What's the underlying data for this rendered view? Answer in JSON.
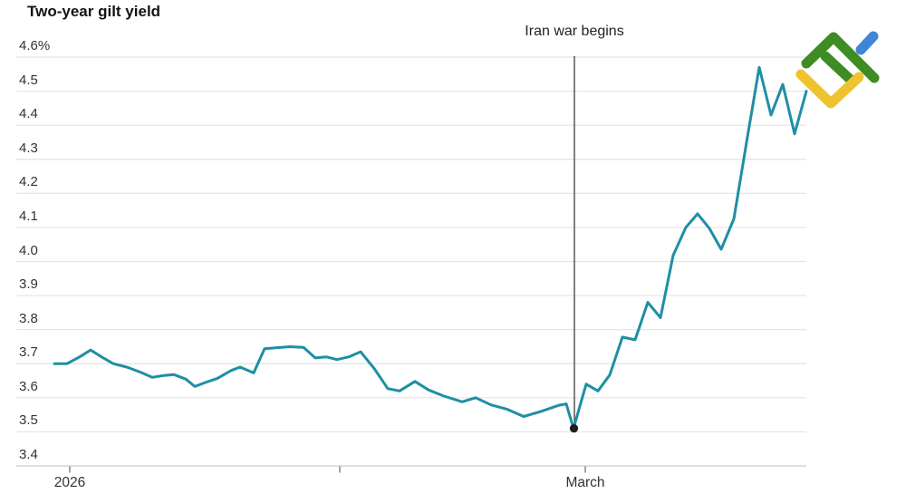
{
  "title": "Two-year gilt yield",
  "annotation": "Iran war begins",
  "colors": {
    "series": "#1E8FA4",
    "grid": "#e3e3e3",
    "axis": "#c9c9c9",
    "tick": "#666666",
    "event_line": "#3c3c3c",
    "event_dot": "#1d1d1d",
    "label_text": "#333333",
    "title_text": "#141414"
  },
  "chart_data": {
    "type": "line",
    "title": "Two-year gilt yield",
    "xlabel": "",
    "ylabel": "",
    "ylim": [
      3.4,
      4.6
    ],
    "grid": true,
    "legend": "none",
    "y_ticks": [
      {
        "value": 4.6,
        "label": "4.6%"
      },
      {
        "value": 4.5,
        "label": "4.5"
      },
      {
        "value": 4.4,
        "label": "4.4"
      },
      {
        "value": 4.3,
        "label": "4.3"
      },
      {
        "value": 4.2,
        "label": "4.2"
      },
      {
        "value": 4.1,
        "label": "4.1"
      },
      {
        "value": 4.0,
        "label": "4.0"
      },
      {
        "value": 3.9,
        "label": "3.9"
      },
      {
        "value": 3.8,
        "label": "3.8"
      },
      {
        "value": 3.7,
        "label": "3.7"
      },
      {
        "value": 3.6,
        "label": "3.6"
      },
      {
        "value": 3.5,
        "label": "3.5"
      },
      {
        "value": 3.4,
        "label": "3.4"
      }
    ],
    "x_ticks": [
      {
        "x": 77,
        "label": "2026"
      },
      {
        "x": 375,
        "label": ""
      },
      {
        "x": 646,
        "label": "March"
      }
    ],
    "x_unit": "plot px (time, Jan-Mar 2026, ~9.6px/day)",
    "series": [
      {
        "name": "Two-year gilt yield (%)",
        "color": "#1E8FA4",
        "points": [
          [
            60,
            3.7
          ],
          [
            74,
            3.7
          ],
          [
            88,
            3.72
          ],
          [
            100,
            3.74
          ],
          [
            112,
            3.72
          ],
          [
            125,
            3.7
          ],
          [
            140,
            3.69
          ],
          [
            155,
            3.675
          ],
          [
            168,
            3.66
          ],
          [
            180,
            3.665
          ],
          [
            192,
            3.668
          ],
          [
            205,
            3.655
          ],
          [
            215,
            3.633
          ],
          [
            228,
            3.646
          ],
          [
            240,
            3.657
          ],
          [
            255,
            3.68
          ],
          [
            265,
            3.69
          ],
          [
            280,
            3.673
          ],
          [
            292,
            3.744
          ],
          [
            305,
            3.747
          ],
          [
            320,
            3.75
          ],
          [
            335,
            3.748
          ],
          [
            348,
            3.717
          ],
          [
            360,
            3.72
          ],
          [
            372,
            3.712
          ],
          [
            385,
            3.72
          ],
          [
            398,
            3.735
          ],
          [
            413,
            3.686
          ],
          [
            428,
            3.627
          ],
          [
            441,
            3.62
          ],
          [
            458,
            3.648
          ],
          [
            473,
            3.623
          ],
          [
            490,
            3.605
          ],
          [
            510,
            3.588
          ],
          [
            525,
            3.6
          ],
          [
            542,
            3.579
          ],
          [
            560,
            3.566
          ],
          [
            578,
            3.545
          ],
          [
            597,
            3.56
          ],
          [
            617,
            3.578
          ],
          [
            625,
            3.582
          ],
          [
            633,
            3.51
          ],
          [
            647,
            3.64
          ],
          [
            660,
            3.62
          ],
          [
            673,
            3.667
          ],
          [
            687,
            3.778
          ],
          [
            701,
            3.77
          ],
          [
            715,
            3.88
          ],
          [
            729,
            3.835
          ],
          [
            743,
            4.018
          ],
          [
            757,
            4.1
          ],
          [
            770,
            4.14
          ],
          [
            783,
            4.097
          ],
          [
            796,
            4.036
          ],
          [
            810,
            4.125
          ],
          [
            824,
            4.35
          ],
          [
            838,
            4.57
          ],
          [
            851,
            4.43
          ],
          [
            864,
            4.52
          ],
          [
            877,
            4.375
          ],
          [
            890,
            4.5
          ]
        ]
      }
    ],
    "event": {
      "label": "Iran war begins",
      "x": 634,
      "value_at_event": 3.51
    }
  },
  "logo": {
    "name": "LiteFinance",
    "colors": {
      "green": "#3F8C25",
      "yellow": "#EFC32F",
      "blue": "#3E86D8"
    }
  }
}
